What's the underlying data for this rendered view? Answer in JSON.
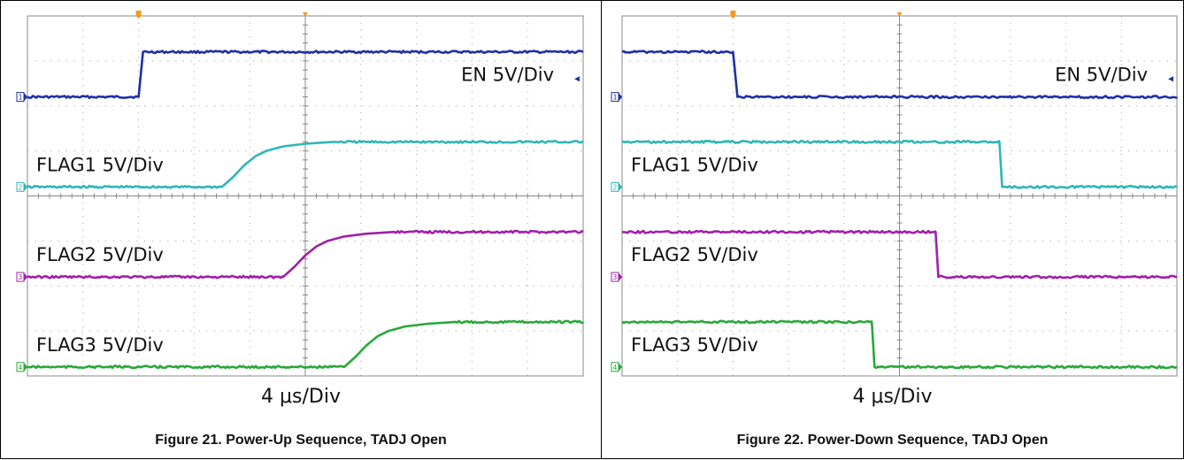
{
  "colors": {
    "EN": "#1f2fa8",
    "FLAG1": "#2fb6b8",
    "FLAG2": "#a020a8",
    "FLAG3": "#29a83a",
    "grid": "#9a9a9a",
    "trigger": "#f39a1e"
  },
  "chart_data": [
    {
      "type": "line",
      "title": "",
      "caption": "Figure 21. Power-Up Sequence, TADJ Open",
      "timebase": "4 μs/Div",
      "x_divisions": 10,
      "y_divisions": 8,
      "xlim": [
        0,
        10
      ],
      "ylim": [
        0,
        8
      ],
      "trigger_position_div": 2,
      "series": [
        {
          "name": "EN 5V/Div",
          "channel": "1",
          "color_key": "EN",
          "label_side": "right",
          "x": [
            0,
            2.0,
            2.08,
            10
          ],
          "y": [
            6.2,
            6.2,
            7.2,
            7.2
          ]
        },
        {
          "name": "FLAG1 5V/Div",
          "channel": "2",
          "color_key": "FLAG1",
          "label_side": "left",
          "x": [
            0,
            3.5,
            3.7,
            3.9,
            4.1,
            4.3,
            4.6,
            5.0,
            5.5,
            10
          ],
          "y": [
            4.2,
            4.2,
            4.42,
            4.68,
            4.88,
            5.0,
            5.1,
            5.16,
            5.2,
            5.2
          ]
        },
        {
          "name": "FLAG2 5V/Div",
          "channel": "3",
          "color_key": "FLAG2",
          "label_side": "left",
          "x": [
            0,
            4.6,
            4.8,
            5.0,
            5.2,
            5.4,
            5.7,
            6.1,
            6.6,
            10
          ],
          "y": [
            2.2,
            2.2,
            2.42,
            2.68,
            2.88,
            3.0,
            3.1,
            3.16,
            3.2,
            3.2
          ]
        },
        {
          "name": "FLAG3 5V/Div",
          "channel": "4",
          "color_key": "FLAG3",
          "label_side": "left",
          "x": [
            0,
            5.7,
            5.9,
            6.1,
            6.3,
            6.5,
            6.8,
            7.2,
            7.7,
            10
          ],
          "y": [
            0.2,
            0.2,
            0.42,
            0.68,
            0.88,
            1.0,
            1.1,
            1.16,
            1.2,
            1.2
          ]
        }
      ]
    },
    {
      "type": "line",
      "title": "",
      "caption": "Figure 22. Power-Down Sequence, TADJ Open",
      "timebase": "4 μs/Div",
      "x_divisions": 10,
      "y_divisions": 8,
      "xlim": [
        0,
        10
      ],
      "ylim": [
        0,
        8
      ],
      "trigger_position_div": 2,
      "series": [
        {
          "name": "EN 5V/Div",
          "channel": "1",
          "color_key": "EN",
          "label_side": "right",
          "x": [
            0,
            2.0,
            2.08,
            10
          ],
          "y": [
            7.2,
            7.2,
            6.2,
            6.2
          ]
        },
        {
          "name": "FLAG1 5V/Div",
          "channel": "2",
          "color_key": "FLAG1",
          "label_side": "left",
          "x": [
            0,
            6.8,
            6.85,
            10
          ],
          "y": [
            5.2,
            5.2,
            4.2,
            4.2
          ]
        },
        {
          "name": "FLAG2 5V/Div",
          "channel": "3",
          "color_key": "FLAG2",
          "label_side": "left",
          "x": [
            0,
            5.65,
            5.7,
            10
          ],
          "y": [
            3.2,
            3.2,
            2.2,
            2.2
          ]
        },
        {
          "name": "FLAG3 5V/Div",
          "channel": "4",
          "color_key": "FLAG3",
          "label_side": "left",
          "x": [
            0,
            4.5,
            4.55,
            10
          ],
          "y": [
            1.2,
            1.2,
            0.2,
            0.2
          ]
        }
      ]
    }
  ]
}
